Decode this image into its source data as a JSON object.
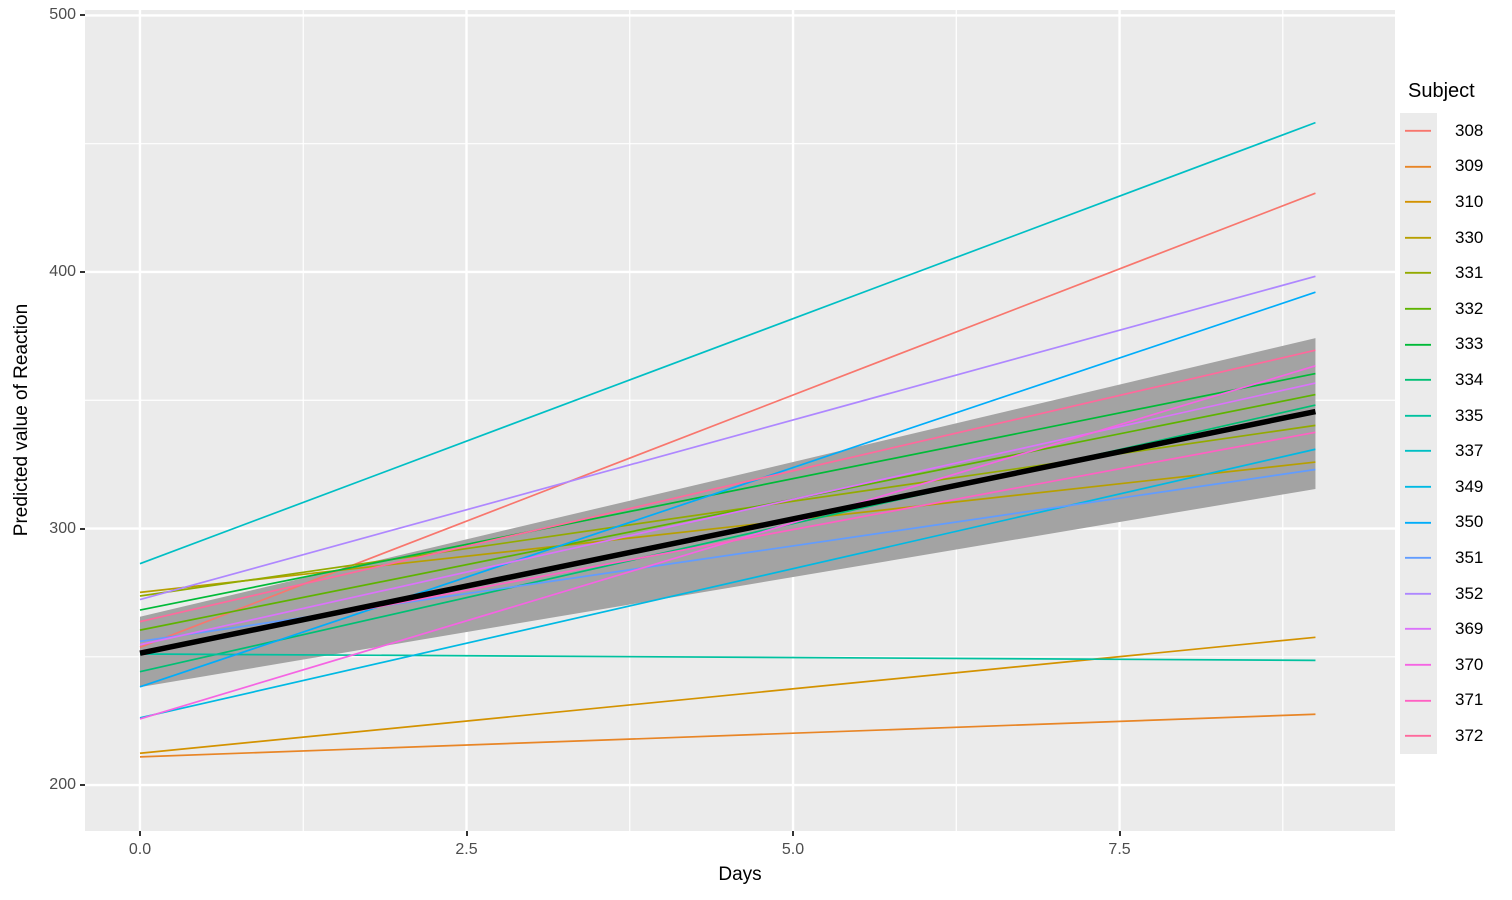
{
  "figure": {
    "background": "#FFFFFF",
    "panel_background": "#EBEBEB",
    "grid_color": "#FFFFFF",
    "tick_color": "#333333",
    "tick_label_color": "#4D4D4D"
  },
  "chart_data": {
    "type": "line",
    "title": "",
    "xlabel": "Days",
    "ylabel": "Predicted value of Reaction",
    "xlim": [
      -0.421,
      9.609
    ],
    "ylim": [
      182.1,
      502.1
    ],
    "grid": true,
    "legend_position": "right",
    "x_ticks": [
      {
        "value": 0.0,
        "label": "0.0"
      },
      {
        "value": 2.5,
        "label": "2.5"
      },
      {
        "value": 5.0,
        "label": "5.0"
      },
      {
        "value": 7.5,
        "label": "7.5"
      }
    ],
    "y_ticks": [
      {
        "value": 200,
        "label": "200"
      },
      {
        "value": 300,
        "label": "300"
      },
      {
        "value": 400,
        "label": "400"
      },
      {
        "value": 500,
        "label": "500"
      }
    ],
    "x_minor": [
      1.25,
      3.75,
      6.25,
      8.75
    ],
    "y_minor": [
      250,
      350,
      450
    ],
    "x": [
      0,
      9
    ],
    "ribbon": {
      "name": "confidence-band",
      "color": "#A3A3A3",
      "upper": [
        265.6,
        374.2
      ],
      "lower": [
        238.2,
        315.4
      ]
    },
    "fixed_effect": {
      "name": "population-average-line",
      "color": "#000000",
      "width": 5.5,
      "y": [
        251.4,
        345.6
      ]
    },
    "legend": {
      "title": "Subject",
      "key_fill": "#EBEBEB"
    },
    "series": [
      {
        "name": "308",
        "color": "#F8766D",
        "y": [
          253.7,
          430.7
        ]
      },
      {
        "name": "309",
        "color": "#E88526",
        "y": [
          211.0,
          227.6
        ]
      },
      {
        "name": "310",
        "color": "#D39200",
        "y": [
          212.4,
          257.6
        ]
      },
      {
        "name": "330",
        "color": "#B79F00",
        "y": [
          275.1,
          325.9
        ]
      },
      {
        "name": "331",
        "color": "#93AA00",
        "y": [
          273.7,
          340.2
        ]
      },
      {
        "name": "332",
        "color": "#5EB300",
        "y": [
          260.4,
          352.2
        ]
      },
      {
        "name": "333",
        "color": "#00BA38",
        "y": [
          268.2,
          360.4
        ]
      },
      {
        "name": "334",
        "color": "#00BF74",
        "y": [
          244.2,
          348.1
        ]
      },
      {
        "name": "335",
        "color": "#00C19F",
        "y": [
          251.1,
          248.6
        ]
      },
      {
        "name": "337",
        "color": "#00BFC4",
        "y": [
          286.3,
          458.2
        ]
      },
      {
        "name": "349",
        "color": "#00B9E3",
        "y": [
          226.2,
          330.9
        ]
      },
      {
        "name": "350",
        "color": "#00ADFA",
        "y": [
          238.3,
          392.1
        ]
      },
      {
        "name": "351",
        "color": "#619CFF",
        "y": [
          256.0,
          323.0
        ]
      },
      {
        "name": "352",
        "color": "#AE87FF",
        "y": [
          272.3,
          398.3
        ]
      },
      {
        "name": "369",
        "color": "#DB72FB",
        "y": [
          254.7,
          356.7
        ]
      },
      {
        "name": "370",
        "color": "#F564E3",
        "y": [
          225.8,
          363.4
        ]
      },
      {
        "name": "371",
        "color": "#FF61C3",
        "y": [
          252.2,
          337.5
        ]
      },
      {
        "name": "372",
        "color": "#FF699C",
        "y": [
          263.7,
          369.5
        ]
      }
    ]
  }
}
